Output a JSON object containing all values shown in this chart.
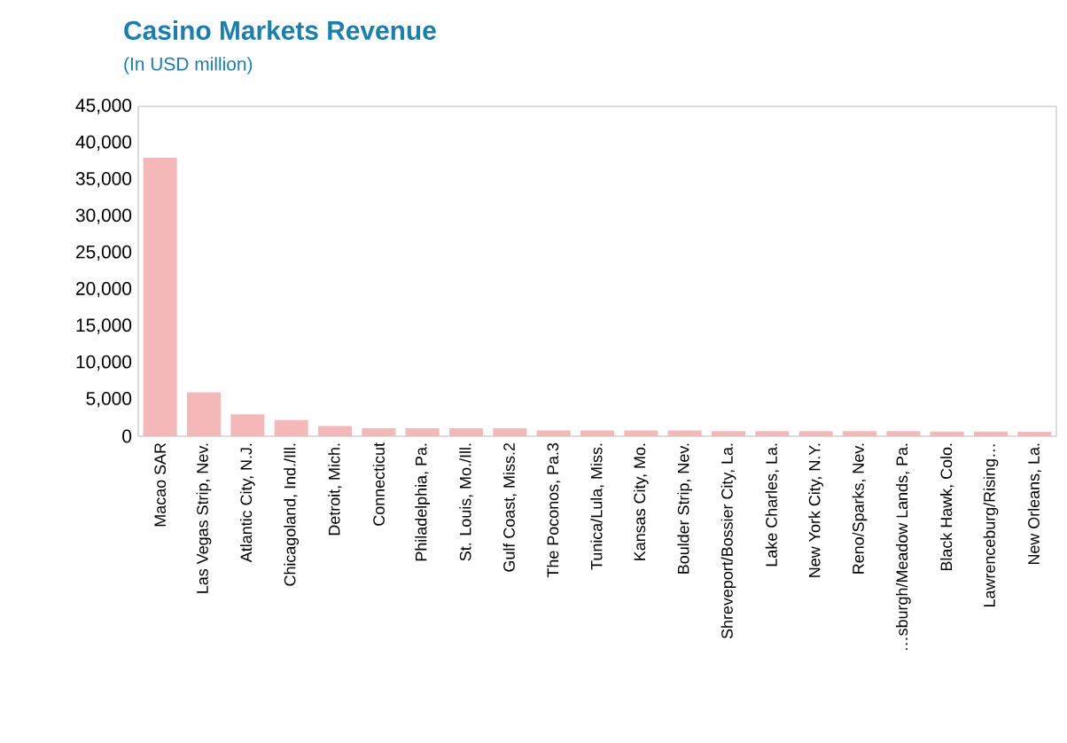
{
  "chart_data": {
    "type": "bar",
    "title": "Casino Markets Revenue",
    "subtitle": "(In USD million)",
    "categories": [
      "Macao SAR",
      "Las Vegas Strip, Nev.",
      "Atlantic City, N.J.",
      "Chicagoland, Ind./Ill.",
      "Detroit, Mich.",
      "Connecticut",
      "Philadelphia, Pa.",
      "St. Louis, Mo./Ill.",
      "Gulf Coast, Miss.2",
      "The Poconos, Pa.3",
      "Tunica/Lula, Miss.",
      "Kansas City, Mo.",
      "Boulder Strip, Nev.",
      "Shreveport/Bossier City, La.",
      "Lake Charles, La.",
      "New York City, N.Y.",
      "Reno/Sparks, Nev.",
      "…sburgh/Meadow Lands, Pa.",
      "Black Hawk, Colo.",
      "Lawrenceburg/Rising…",
      "New Orleans, La."
    ],
    "values": [
      38000,
      6000,
      3000,
      2200,
      1400,
      1100,
      1100,
      1100,
      1100,
      800,
      800,
      800,
      800,
      700,
      700,
      700,
      700,
      700,
      650,
      650,
      600
    ],
    "color": "#f4b8b8",
    "ylim": [
      0,
      45000
    ],
    "yticks": [
      0,
      {
        "value": 5000,
        "label": "5,000"
      },
      {
        "value": 10000,
        "label": "10,000"
      },
      {
        "value": 15000,
        "label": "15,000"
      },
      {
        "value": 20000,
        "label": "20,000"
      },
      {
        "value": 25000,
        "label": "25,000"
      },
      {
        "value": 30000,
        "label": "30,000"
      },
      {
        "value": 35000,
        "label": "35,000"
      },
      {
        "value": 40000,
        "label": "40,000"
      },
      {
        "value": 45000,
        "label": "45,000"
      }
    ]
  }
}
